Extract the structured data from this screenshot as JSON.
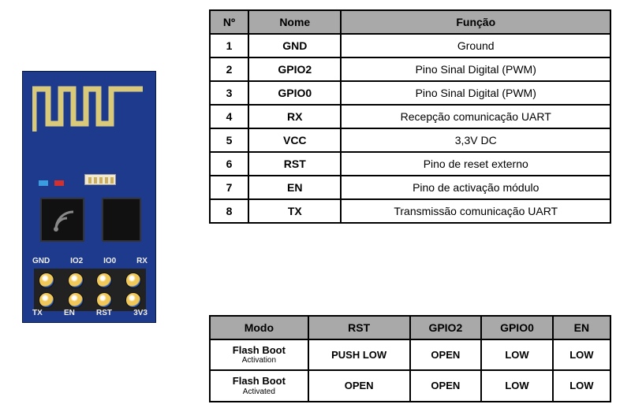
{
  "module": {
    "board_color": "#1e3a8c",
    "antenna_color": "#d9c97a",
    "pin_labels_top": [
      "GND",
      "IO2",
      "IO0",
      "RX"
    ],
    "pin_labels_bottom": [
      "TX",
      "EN",
      "RST",
      "3V3"
    ]
  },
  "pin_table": {
    "columns": [
      "Nº",
      "Nome",
      "Função"
    ],
    "rows": [
      [
        "1",
        "GND",
        "Ground"
      ],
      [
        "2",
        "GPIO2",
        "Pino Sinal Digital (PWM)"
      ],
      [
        "3",
        "GPIO0",
        "Pino Sinal Digital (PWM)"
      ],
      [
        "4",
        "RX",
        "Recepção comunicação UART"
      ],
      [
        "5",
        "VCC",
        "3,3V DC"
      ],
      [
        "6",
        "RST",
        "Pino de reset externo"
      ],
      [
        "7",
        "EN",
        "Pino de activação módulo"
      ],
      [
        "8",
        "TX",
        "Transmissão comunicação UART"
      ]
    ],
    "header_bg": "#a9a9a9",
    "border_color": "#000000"
  },
  "mode_table": {
    "columns": [
      "Modo",
      "RST",
      "GPIO2",
      "GPIO0",
      "EN"
    ],
    "rows": [
      {
        "mode": "Flash Boot",
        "mode_sub": "Activation",
        "values": [
          "PUSH LOW",
          "OPEN",
          "LOW",
          "LOW"
        ]
      },
      {
        "mode": "Flash Boot",
        "mode_sub": "Activated",
        "values": [
          "OPEN",
          "OPEN",
          "LOW",
          "LOW"
        ]
      }
    ],
    "header_bg": "#a9a9a9"
  }
}
